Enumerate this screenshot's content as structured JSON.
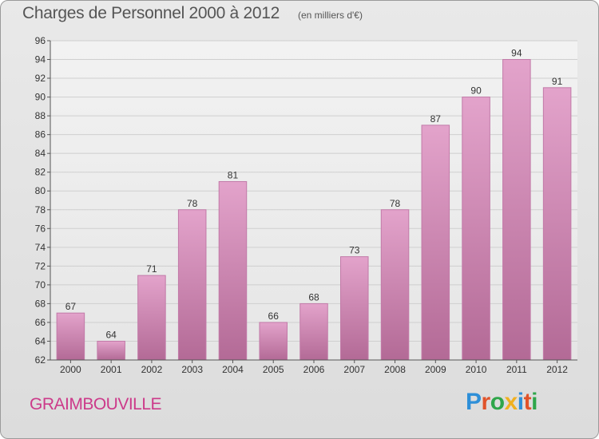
{
  "title": "Charges de Personnel 2000 à 2012",
  "unit_note": "(en milliers d'€)",
  "commune": "GRAIMBOUVILLE",
  "logo": {
    "letters": [
      "P",
      "r",
      "o",
      "x",
      "i",
      "t",
      "i"
    ],
    "colors": [
      "#2e8fd8",
      "#e0532a",
      "#2fa64a",
      "#f0b020",
      "#2e8fd8",
      "#e0532a",
      "#2fa64a"
    ]
  },
  "colors": {
    "bar_top": "#e3a3cb",
    "bar_bottom": "#b36a96",
    "bar_border": "#c27aa8"
  },
  "chart_data": {
    "type": "bar",
    "title": "Charges de Personnel 2000 à 2012",
    "categories": [
      "2000",
      "2001",
      "2002",
      "2003",
      "2004",
      "2005",
      "2006",
      "2007",
      "2008",
      "2009",
      "2010",
      "2011",
      "2012"
    ],
    "values": [
      67,
      64,
      71,
      78,
      81,
      66,
      68,
      73,
      78,
      87,
      90,
      94,
      91
    ],
    "ylim": [
      62,
      96
    ],
    "yticks": [
      62,
      64,
      66,
      68,
      70,
      72,
      74,
      76,
      78,
      80,
      82,
      84,
      86,
      88,
      90,
      92,
      94,
      96
    ],
    "grid": true,
    "xlabel": "",
    "ylabel": ""
  }
}
